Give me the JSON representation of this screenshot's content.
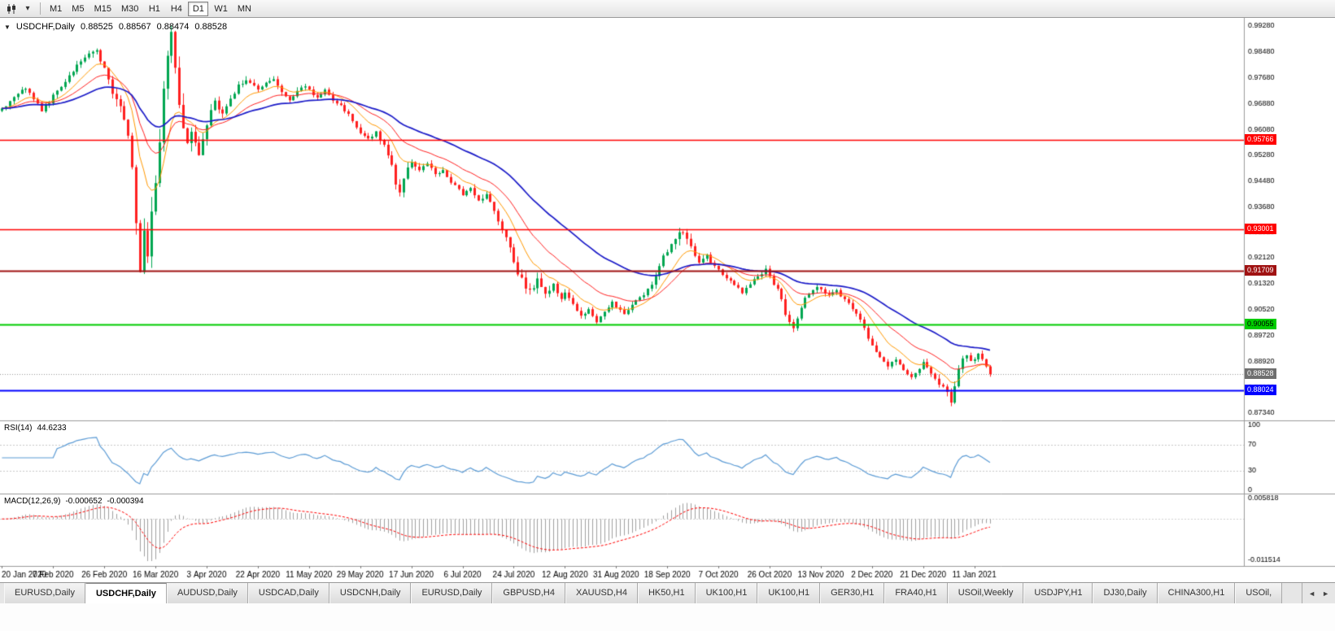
{
  "toolbar": {
    "timeframes": [
      {
        "label": "M1",
        "active": false
      },
      {
        "label": "M5",
        "active": false
      },
      {
        "label": "M15",
        "active": false
      },
      {
        "label": "M30",
        "active": false
      },
      {
        "label": "H1",
        "active": false
      },
      {
        "label": "H4",
        "active": false
      },
      {
        "label": "D1",
        "active": true
      },
      {
        "label": "W1",
        "active": false
      },
      {
        "label": "MN",
        "active": false
      }
    ]
  },
  "chart": {
    "title": "USDCHF,Daily",
    "open": "0.88525",
    "high": "0.88567",
    "low": "0.88474",
    "close": "0.88528"
  },
  "price_axis": {
    "labels": [
      "0.99280",
      "0.98480",
      "0.97680",
      "0.96880",
      "0.96080",
      "0.95280",
      "0.94480",
      "0.93680",
      "0.92920",
      "0.92120",
      "0.91320",
      "0.90520",
      "0.89720",
      "0.88920",
      "0.88120",
      "0.87340"
    ]
  },
  "hlines": [
    {
      "label": "0.95766",
      "price": 0.95766,
      "color": "#ff0000",
      "tag_bg": "#ff0000",
      "tag_fg": "#ffffff",
      "width": 1.4
    },
    {
      "label": "0.93001",
      "price": 0.93001,
      "color": "#ff0000",
      "tag_bg": "#ff0000",
      "tag_fg": "#ffffff",
      "width": 1.4
    },
    {
      "label": "0.91709",
      "price": 0.91709,
      "color": "#a01212",
      "tag_bg": "#a01212",
      "tag_fg": "#ffffff",
      "width": 2
    },
    {
      "label": "0.90055",
      "price": 0.90055,
      "color": "#00cc00",
      "tag_bg": "#00cc00",
      "tag_fg": "#000000",
      "width": 2
    },
    {
      "label": "0.88024",
      "price": 0.88024,
      "color": "#0000ff",
      "tag_bg": "#0000ff",
      "tag_fg": "#ffffff",
      "width": 2
    }
  ],
  "current_price": {
    "label": "0.88528",
    "value": 0.88528,
    "tag_bg": "#6f6f6f",
    "tag_fg": "#ffffff"
  },
  "rsi": {
    "name": "RSI(14)",
    "value": "44.6233",
    "levels": [
      "100",
      "70",
      "30",
      "0"
    ],
    "levels_dashed": [
      70,
      30
    ],
    "line_color": "#5b9bd5"
  },
  "macd": {
    "name": "MACD(12,26,9)",
    "value_main": "-0.000652",
    "value_signal": "-0.000394",
    "axis_labels": [
      "0.005818",
      "-0.011514"
    ],
    "hist_color": "#a0a0a0",
    "signal_color": "#ff0000"
  },
  "date_axis": {
    "labels": [
      "20 Jan 2020",
      "7 Feb 2020",
      "26 Feb 2020",
      "16 Mar 2020",
      "3 Apr 2020",
      "22 Apr 2020",
      "11 May 2020",
      "29 May 2020",
      "17 Jun 2020",
      "6 Jul 2020",
      "24 Jul 2020",
      "12 Aug 2020",
      "31 Aug 2020",
      "18 Sep 2020",
      "7 Oct 2020",
      "26 Oct 2020",
      "13 Nov 2020",
      "2 Dec 2020",
      "21 Dec 2020",
      "11 Jan 2021"
    ]
  },
  "tabs": {
    "items": [
      {
        "label": "EURUSD,Daily",
        "active": false
      },
      {
        "label": "USDCHF,Daily",
        "active": true
      },
      {
        "label": "AUDUSD,Daily",
        "active": false
      },
      {
        "label": "USDCAD,Daily",
        "active": false
      },
      {
        "label": "USDCNH,Daily",
        "active": false
      },
      {
        "label": "EURUSD,Daily",
        "active": false
      },
      {
        "label": "GBPUSD,H4",
        "active": false
      },
      {
        "label": "XAUUSD,H4",
        "active": false
      },
      {
        "label": "HK50,H1",
        "active": false
      },
      {
        "label": "UK100,H1",
        "active": false
      },
      {
        "label": "UK100,H1",
        "active": false
      },
      {
        "label": "GER30,H1",
        "active": false
      },
      {
        "label": "FRA40,H1",
        "active": false
      },
      {
        "label": "USOil,Weekly",
        "active": false
      },
      {
        "label": "USDJPY,H1",
        "active": false
      },
      {
        "label": "DJ30,Daily",
        "active": false
      },
      {
        "label": "CHINA300,H1",
        "active": false
      },
      {
        "label": "USOil,",
        "active": false
      }
    ]
  },
  "chart_data": {
    "type": "candlestick",
    "symbol": "USDCHF",
    "timeframe": "Daily",
    "bar_count": 252,
    "total_slots": 316,
    "label_every": 13,
    "first_open": 0.9665,
    "last_close": 0.88528,
    "price_scale": {
      "top": 0.9952,
      "bottom": 0.871,
      "max_high": 0.9929,
      "min_low": 0.874
    },
    "ma_periods": [
      10,
      21,
      45
    ],
    "rsi_period": 14,
    "macd_periods": [
      12,
      26,
      9
    ],
    "macd_scale": {
      "max": 0.0062,
      "min": -0.0118
    },
    "colors": {
      "up": "#00a651",
      "down": "#ff2020",
      "ma_fast": "#ff9900",
      "ma_medium": "#ff2020",
      "ma_slow": "#1a1ac8"
    },
    "price_path": [
      [
        0,
        0.967
      ],
      [
        2,
        0.9692
      ],
      [
        4,
        0.9716
      ],
      [
        6,
        0.9736
      ],
      [
        8,
        0.97
      ],
      [
        10,
        0.9668
      ],
      [
        12,
        0.9692
      ],
      [
        14,
        0.973
      ],
      [
        16,
        0.9752
      ],
      [
        18,
        0.9788
      ],
      [
        20,
        0.9822
      ],
      [
        22,
        0.9845
      ],
      [
        24,
        0.985
      ],
      [
        26,
        0.98
      ],
      [
        27,
        0.9762
      ],
      [
        28,
        0.9726
      ],
      [
        29,
        0.97
      ],
      [
        30,
        0.9678
      ],
      [
        31,
        0.9648
      ],
      [
        32,
        0.9592
      ],
      [
        33,
        0.948
      ],
      [
        34,
        0.932
      ],
      [
        35,
        0.918
      ],
      [
        36,
        0.928
      ],
      [
        37,
        0.922
      ],
      [
        38,
        0.935
      ],
      [
        39,
        0.945
      ],
      [
        40,
        0.958
      ],
      [
        41,
        0.972
      ],
      [
        42,
        0.985
      ],
      [
        43,
        0.9895
      ],
      [
        44,
        0.98
      ],
      [
        45,
        0.97
      ],
      [
        46,
        0.962
      ],
      [
        47,
        0.956
      ],
      [
        48,
        0.961
      ],
      [
        49,
        0.9555
      ],
      [
        50,
        0.953
      ],
      [
        51,
        0.958
      ],
      [
        52,
        0.963
      ],
      [
        54,
        0.969
      ],
      [
        56,
        0.966
      ],
      [
        58,
        0.97
      ],
      [
        60,
        0.9742
      ],
      [
        62,
        0.9758
      ],
      [
        64,
        0.9738
      ],
      [
        65,
        0.9726
      ],
      [
        67,
        0.9752
      ],
      [
        69,
        0.9766
      ],
      [
        71,
        0.9722
      ],
      [
        73,
        0.97
      ],
      [
        75,
        0.9726
      ],
      [
        77,
        0.9742
      ],
      [
        78,
        0.973
      ],
      [
        80,
        0.9706
      ],
      [
        82,
        0.9726
      ],
      [
        84,
        0.97
      ],
      [
        86,
        0.9682
      ],
      [
        88,
        0.9652
      ],
      [
        90,
        0.9618
      ],
      [
        91,
        0.96
      ],
      [
        93,
        0.9576
      ],
      [
        95,
        0.9602
      ],
      [
        97,
        0.9556
      ],
      [
        99,
        0.9502
      ],
      [
        100,
        0.9446
      ],
      [
        101,
        0.9412
      ],
      [
        102,
        0.9462
      ],
      [
        103,
        0.9492
      ],
      [
        104,
        0.9512
      ],
      [
        106,
        0.9482
      ],
      [
        108,
        0.9506
      ],
      [
        110,
        0.9466
      ],
      [
        112,
        0.9482
      ],
      [
        114,
        0.9446
      ],
      [
        116,
        0.9426
      ],
      [
        117,
        0.9406
      ],
      [
        119,
        0.9426
      ],
      [
        121,
        0.9386
      ],
      [
        123,
        0.9406
      ],
      [
        125,
        0.9356
      ],
      [
        127,
        0.93
      ],
      [
        129,
        0.9242
      ],
      [
        130,
        0.9196
      ],
      [
        131,
        0.9162
      ],
      [
        132,
        0.9146
      ],
      [
        133,
        0.9122
      ],
      [
        134,
        0.9106
      ],
      [
        135,
        0.9126
      ],
      [
        136,
        0.9142
      ],
      [
        137,
        0.9116
      ],
      [
        138,
        0.9096
      ],
      [
        139,
        0.9112
      ],
      [
        140,
        0.9126
      ],
      [
        141,
        0.9106
      ],
      [
        142,
        0.9086
      ],
      [
        143,
        0.9106
      ],
      [
        145,
        0.9066
      ],
      [
        147,
        0.9032
      ],
      [
        149,
        0.9056
      ],
      [
        151,
        0.9012
      ],
      [
        153,
        0.905
      ],
      [
        155,
        0.9076
      ],
      [
        156,
        0.9062
      ],
      [
        158,
        0.9042
      ],
      [
        160,
        0.9066
      ],
      [
        162,
        0.9086
      ],
      [
        164,
        0.9116
      ],
      [
        166,
        0.9152
      ],
      [
        168,
        0.9212
      ],
      [
        170,
        0.9256
      ],
      [
        172,
        0.9282
      ],
      [
        173,
        0.9296
      ],
      [
        174,
        0.9266
      ],
      [
        175,
        0.9242
      ],
      [
        176,
        0.9216
      ],
      [
        177,
        0.9196
      ],
      [
        178,
        0.9206
      ],
      [
        179,
        0.9218
      ],
      [
        180,
        0.9198
      ],
      [
        182,
        0.9172
      ],
      [
        184,
        0.9152
      ],
      [
        186,
        0.913
      ],
      [
        188,
        0.9102
      ],
      [
        190,
        0.9132
      ],
      [
        192,
        0.9154
      ],
      [
        194,
        0.9176
      ],
      [
        195,
        0.9158
      ],
      [
        196,
        0.9132
      ],
      [
        197,
        0.9118
      ],
      [
        198,
        0.9086
      ],
      [
        199,
        0.9042
      ],
      [
        200,
        0.9006
      ],
      [
        201,
        0.8992
      ],
      [
        202,
        0.9022
      ],
      [
        203,
        0.9054
      ],
      [
        204,
        0.9084
      ],
      [
        205,
        0.9102
      ],
      [
        206,
        0.9116
      ],
      [
        207,
        0.9122
      ],
      [
        208,
        0.9112
      ],
      [
        210,
        0.9094
      ],
      [
        212,
        0.9108
      ],
      [
        214,
        0.9084
      ],
      [
        216,
        0.9054
      ],
      [
        218,
        0.9016
      ],
      [
        220,
        0.8966
      ],
      [
        221,
        0.8936
      ],
      [
        223,
        0.8906
      ],
      [
        225,
        0.8876
      ],
      [
        227,
        0.8898
      ],
      [
        229,
        0.8864
      ],
      [
        231,
        0.8844
      ],
      [
        233,
        0.8868
      ],
      [
        234,
        0.8888
      ],
      [
        236,
        0.8854
      ],
      [
        238,
        0.8824
      ],
      [
        240,
        0.8794
      ],
      [
        241,
        0.8764
      ],
      [
        242,
        0.8816
      ],
      [
        243,
        0.8866
      ],
      [
        244,
        0.8898
      ],
      [
        245,
        0.8916
      ],
      [
        246,
        0.8894
      ],
      [
        247,
        0.8902
      ],
      [
        248,
        0.8918
      ],
      [
        249,
        0.8902
      ],
      [
        250,
        0.888
      ],
      [
        251,
        0.8853
      ]
    ],
    "volatility": [
      [
        0,
        0.0016
      ],
      [
        18,
        0.002
      ],
      [
        26,
        0.0032
      ],
      [
        31,
        0.0045
      ],
      [
        34,
        0.0065
      ],
      [
        38,
        0.0075
      ],
      [
        43,
        0.0085
      ],
      [
        46,
        0.006
      ],
      [
        50,
        0.0045
      ],
      [
        54,
        0.0032
      ],
      [
        60,
        0.0024
      ],
      [
        70,
        0.002
      ],
      [
        80,
        0.0018
      ],
      [
        92,
        0.002
      ],
      [
        99,
        0.003
      ],
      [
        101,
        0.0036
      ],
      [
        105,
        0.0022
      ],
      [
        115,
        0.002
      ],
      [
        124,
        0.0024
      ],
      [
        130,
        0.0032
      ],
      [
        134,
        0.0036
      ],
      [
        140,
        0.0024
      ],
      [
        146,
        0.0022
      ],
      [
        152,
        0.002
      ],
      [
        158,
        0.0018
      ],
      [
        164,
        0.0022
      ],
      [
        168,
        0.003
      ],
      [
        172,
        0.0038
      ],
      [
        176,
        0.0024
      ],
      [
        182,
        0.0018
      ],
      [
        190,
        0.0018
      ],
      [
        196,
        0.0022
      ],
      [
        200,
        0.0032
      ],
      [
        204,
        0.0024
      ],
      [
        208,
        0.0018
      ],
      [
        214,
        0.0018
      ],
      [
        220,
        0.0022
      ],
      [
        228,
        0.0018
      ],
      [
        234,
        0.0016
      ],
      [
        240,
        0.0026
      ],
      [
        242,
        0.003
      ],
      [
        246,
        0.002
      ],
      [
        251,
        0.0016
      ]
    ]
  }
}
